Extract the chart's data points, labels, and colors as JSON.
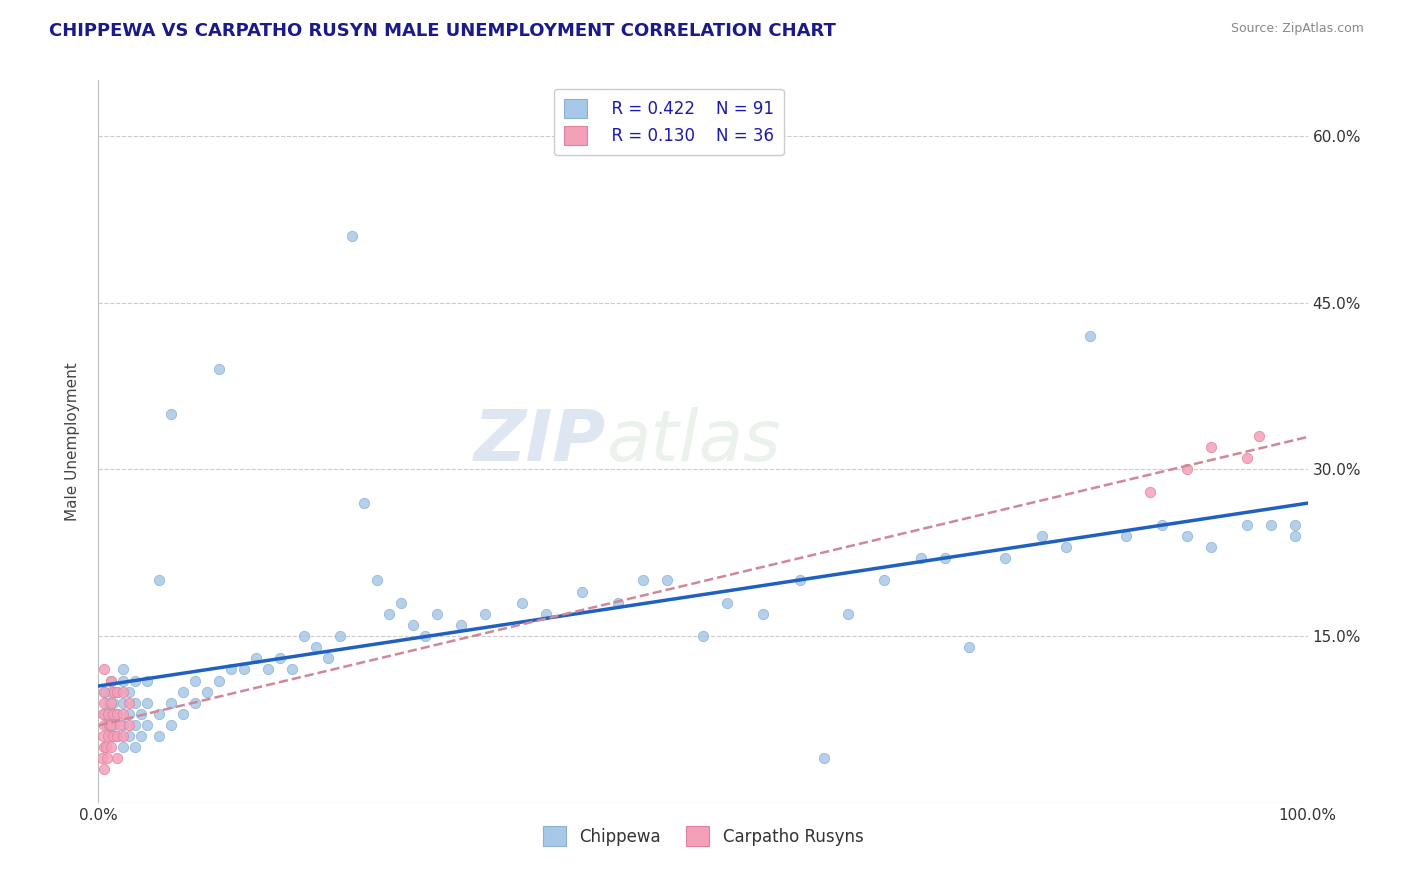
{
  "title": "CHIPPEWA VS CARPATHO RUSYN MALE UNEMPLOYMENT CORRELATION CHART",
  "source": "Source: ZipAtlas.com",
  "ylabel": "Male Unemployment",
  "legend_r1": "R = 0.422",
  "legend_n1": "N = 91",
  "legend_r2": "R = 0.130",
  "legend_n2": "N = 36",
  "chippewa_color": "#a8c8e8",
  "carpatho_color": "#f4a0b8",
  "chippewa_line_color": "#2060c0",
  "carpatho_line_color": "#d08898",
  "background_color": "#ffffff",
  "watermark_zip": "ZIP",
  "watermark_atlas": "atlas",
  "y_tick_vals": [
    0.15,
    0.3,
    0.45,
    0.6
  ],
  "y_tick_labels": [
    "15.0%",
    "30.0%",
    "45.0%",
    "60.0%"
  ],
  "ylim": [
    0.0,
    0.65
  ],
  "xlim": [
    0.0,
    1.0
  ],
  "chippewa_x": [
    0.005,
    0.005,
    0.007,
    0.008,
    0.01,
    0.01,
    0.01,
    0.01,
    0.012,
    0.012,
    0.015,
    0.015,
    0.015,
    0.02,
    0.02,
    0.02,
    0.02,
    0.02,
    0.025,
    0.025,
    0.025,
    0.03,
    0.03,
    0.03,
    0.03,
    0.035,
    0.035,
    0.04,
    0.04,
    0.04,
    0.05,
    0.05,
    0.05,
    0.06,
    0.06,
    0.06,
    0.07,
    0.07,
    0.08,
    0.08,
    0.09,
    0.1,
    0.1,
    0.11,
    0.12,
    0.13,
    0.14,
    0.15,
    0.16,
    0.17,
    0.18,
    0.19,
    0.2,
    0.21,
    0.22,
    0.23,
    0.24,
    0.25,
    0.26,
    0.27,
    0.28,
    0.3,
    0.32,
    0.35,
    0.37,
    0.4,
    0.43,
    0.45,
    0.47,
    0.5,
    0.52,
    0.55,
    0.58,
    0.6,
    0.62,
    0.65,
    0.68,
    0.7,
    0.72,
    0.75,
    0.78,
    0.8,
    0.82,
    0.85,
    0.88,
    0.9,
    0.92,
    0.95,
    0.97,
    0.99,
    0.99
  ],
  "chippewa_y": [
    0.08,
    0.1,
    0.07,
    0.09,
    0.06,
    0.08,
    0.1,
    0.11,
    0.07,
    0.09,
    0.06,
    0.08,
    0.1,
    0.05,
    0.07,
    0.09,
    0.11,
    0.12,
    0.06,
    0.08,
    0.1,
    0.05,
    0.07,
    0.09,
    0.11,
    0.06,
    0.08,
    0.07,
    0.09,
    0.11,
    0.06,
    0.08,
    0.2,
    0.07,
    0.09,
    0.35,
    0.08,
    0.1,
    0.09,
    0.11,
    0.1,
    0.11,
    0.39,
    0.12,
    0.12,
    0.13,
    0.12,
    0.13,
    0.12,
    0.15,
    0.14,
    0.13,
    0.15,
    0.51,
    0.27,
    0.2,
    0.17,
    0.18,
    0.16,
    0.15,
    0.17,
    0.16,
    0.17,
    0.18,
    0.17,
    0.19,
    0.18,
    0.2,
    0.2,
    0.15,
    0.18,
    0.17,
    0.2,
    0.04,
    0.17,
    0.2,
    0.22,
    0.22,
    0.14,
    0.22,
    0.24,
    0.23,
    0.42,
    0.24,
    0.25,
    0.24,
    0.23,
    0.25,
    0.25,
    0.25,
    0.24
  ],
  "carpatho_x": [
    0.003,
    0.004,
    0.004,
    0.005,
    0.005,
    0.005,
    0.005,
    0.005,
    0.005,
    0.006,
    0.007,
    0.008,
    0.008,
    0.009,
    0.01,
    0.01,
    0.01,
    0.01,
    0.012,
    0.012,
    0.013,
    0.015,
    0.015,
    0.015,
    0.015,
    0.018,
    0.02,
    0.02,
    0.02,
    0.025,
    0.025,
    0.87,
    0.9,
    0.92,
    0.95,
    0.96
  ],
  "carpatho_y": [
    0.04,
    0.06,
    0.08,
    0.03,
    0.05,
    0.07,
    0.09,
    0.1,
    0.12,
    0.05,
    0.04,
    0.06,
    0.08,
    0.07,
    0.05,
    0.07,
    0.09,
    0.11,
    0.06,
    0.08,
    0.1,
    0.04,
    0.06,
    0.08,
    0.1,
    0.07,
    0.06,
    0.08,
    0.1,
    0.07,
    0.09,
    0.28,
    0.3,
    0.32,
    0.31,
    0.33
  ]
}
